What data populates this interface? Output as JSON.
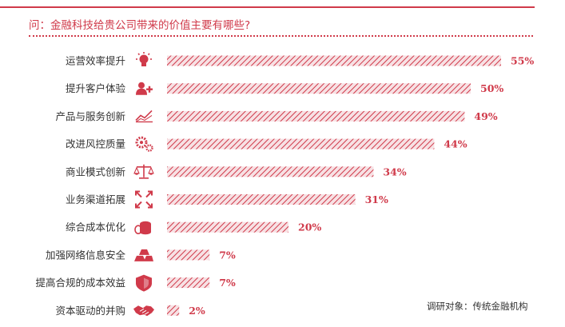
{
  "question": "问：金融科技给贵公司带来的价值主要有哪些?",
  "source_note": "调研对象：传统金融机构",
  "colors": {
    "accent": "#d03a4a",
    "text": "#333333",
    "hatch_bg": "#f6e3e5"
  },
  "chart_data": {
    "type": "bar",
    "orientation": "horizontal",
    "title": "问：金融科技给贵公司带来的价值主要有哪些?",
    "xlabel": "",
    "ylabel": "",
    "xlim": [
      0,
      55
    ],
    "grid": false,
    "legend": "none",
    "categories": [
      "运营效率提升",
      "提升客户体验",
      "产品与服务创新",
      "改进风控质量",
      "商业模式创新",
      "业务渠道拓展",
      "综合成本优化",
      "加强网络信息安全",
      "提高合规的成本效益",
      "资本驱动的并购"
    ],
    "values": [
      55,
      50,
      49,
      44,
      34,
      31,
      20,
      7,
      7,
      2
    ],
    "value_labels": [
      "55%",
      "50%",
      "49%",
      "44%",
      "34%",
      "31%",
      "20%",
      "7%",
      "7%",
      "2%"
    ],
    "icons": [
      "lightbulb-icon",
      "user-plus-icon",
      "line-chart-icon",
      "gears-icon",
      "scales-icon",
      "expand-arrows-icon",
      "coins-icon",
      "gold-bars-icon",
      "shield-icon",
      "handshake-icon"
    ]
  }
}
